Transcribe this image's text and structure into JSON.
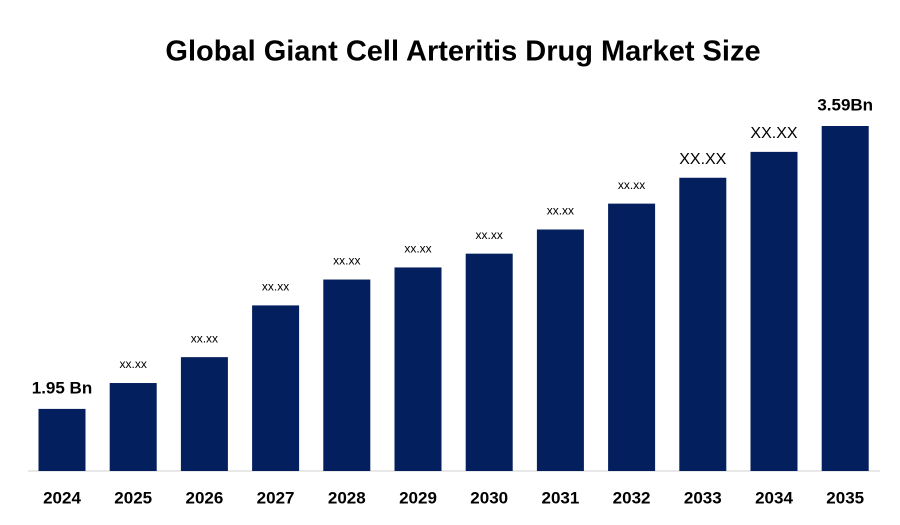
{
  "chart_data": {
    "type": "bar",
    "title": "Global Giant Cell Arteritis Drug Market Size",
    "categories": [
      "2024",
      "2025",
      "2026",
      "2027",
      "2028",
      "2029",
      "2030",
      "2031",
      "2032",
      "2033",
      "2034",
      "2035"
    ],
    "values": [
      1.95,
      2.1,
      2.25,
      2.55,
      2.7,
      2.77,
      2.85,
      2.99,
      3.14,
      3.29,
      3.44,
      3.59
    ],
    "value_labels": [
      "1.95 Bn",
      "xx.xx",
      "xx.xx",
      "xx.xx",
      "xx.xx",
      "xx.xx",
      "xx.xx",
      "xx.xx",
      "xx.xx",
      "XX.XX",
      "XX.XX",
      "3.59Bn"
    ],
    "color": "#041f5e",
    "ylim": [
      1.59,
      3.59
    ]
  }
}
